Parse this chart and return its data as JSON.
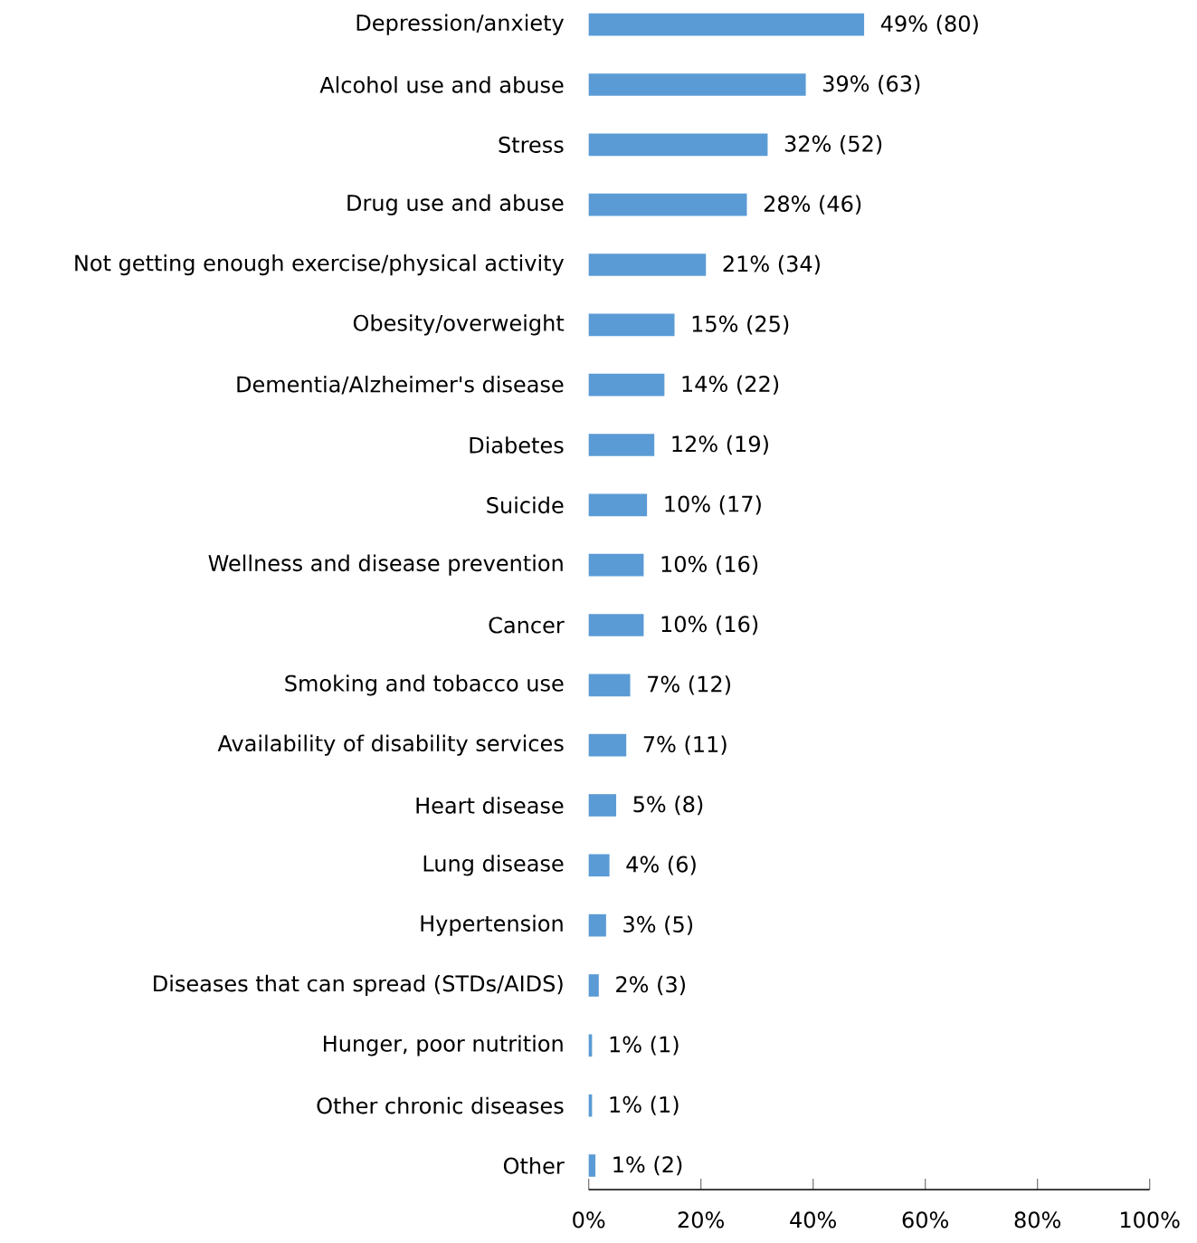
{
  "chart_data": {
    "type": "bar",
    "orientation": "horizontal",
    "categories": [
      "Depression/anxiety",
      "Alcohol use and abuse",
      "Stress",
      "Drug use and abuse",
      "Not getting enough exercise/physical activity",
      "Obesity/overweight",
      "Dementia/Alzheimer's disease",
      "Diabetes",
      "Suicide",
      "Wellness and disease prevention",
      "Cancer",
      "Smoking and tobacco use",
      "Availability of disability services",
      "Heart disease",
      "Lung disease",
      "Hypertension",
      "Diseases that can spread (STDs/AIDS)",
      "Hunger, poor nutrition",
      "Other chronic diseases",
      "Other"
    ],
    "values": [
      49.1,
      38.7,
      31.9,
      28.2,
      20.9,
      15.3,
      13.5,
      11.7,
      10.4,
      9.8,
      9.8,
      7.4,
      6.7,
      4.9,
      3.7,
      3.1,
      1.8,
      0.6,
      0.6,
      1.2
    ],
    "value_labels": [
      "49% (80)",
      "39% (63)",
      "32% (52)",
      "28% (46)",
      "21% (34)",
      "15% (25)",
      "14% (22)",
      "12% (19)",
      "10% (17)",
      "10% (16)",
      "10% (16)",
      "7% (12)",
      "7% (11)",
      "5% (8)",
      "4% (6)",
      "3% (5)",
      "2% (3)",
      "1% (1)",
      "1% (1)",
      "1% (2)"
    ],
    "color": "#5b9bd5",
    "xlim": [
      0,
      100
    ],
    "xticks": [
      {
        "value": 0,
        "label": "0%"
      },
      {
        "value": 20,
        "label": "20%"
      },
      {
        "value": 40,
        "label": "40%"
      },
      {
        "value": 60,
        "label": "60%"
      },
      {
        "value": 80,
        "label": "80%"
      },
      {
        "value": 100,
        "label": "100%"
      }
    ]
  }
}
